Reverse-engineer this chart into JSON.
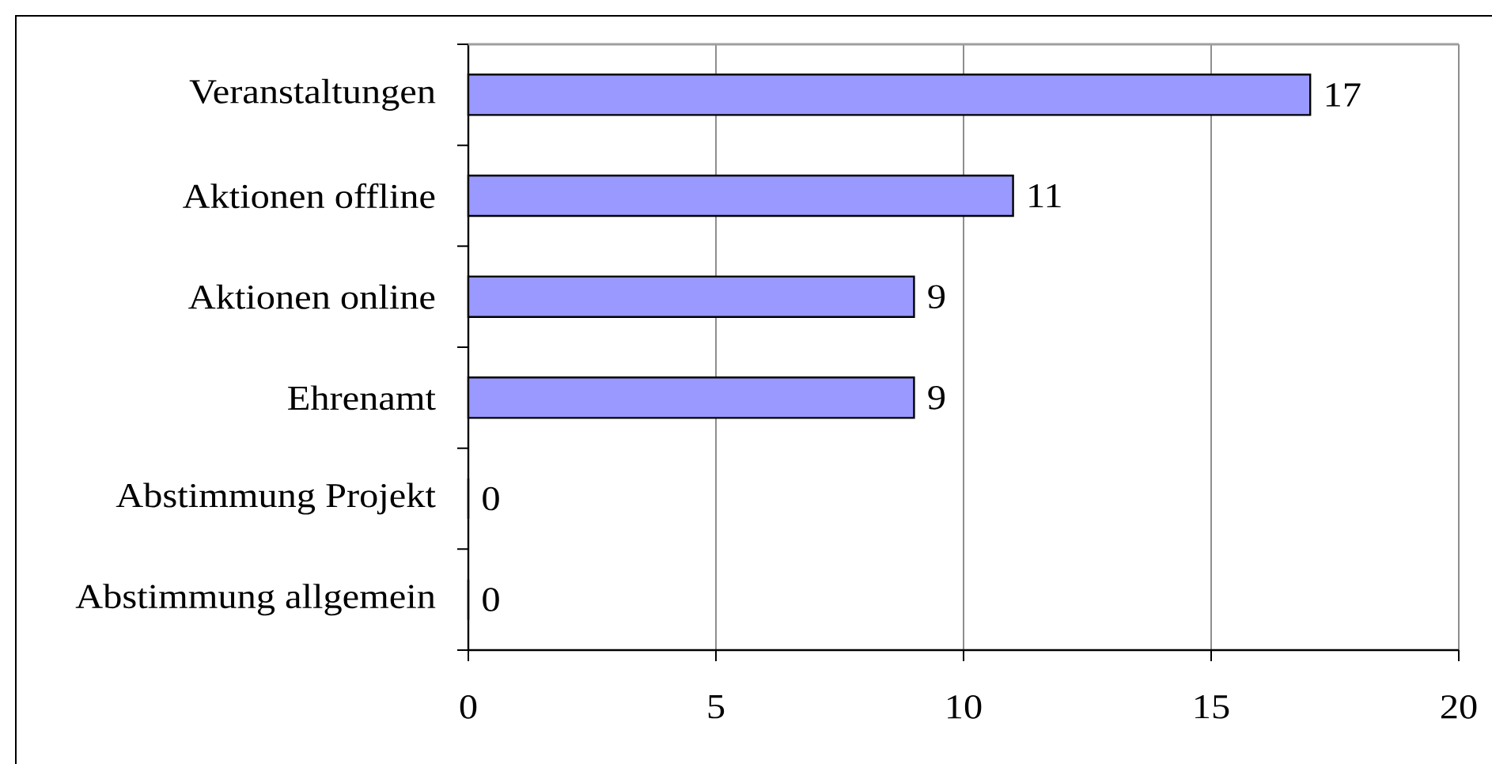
{
  "chart_data": {
    "type": "bar",
    "orientation": "horizontal",
    "categories": [
      "Veranstaltungen",
      "Aktionen offline",
      "Aktionen online",
      "Ehrenamt",
      "Abstimmung Projekt",
      "Abstimmung allgemein"
    ],
    "values": [
      17,
      11,
      9,
      9,
      0,
      0
    ],
    "color": "#9999ff",
    "xlim": [
      0,
      20
    ],
    "xticks": [
      0,
      5,
      10,
      15,
      20
    ],
    "grid": "x",
    "data_labels": true
  }
}
